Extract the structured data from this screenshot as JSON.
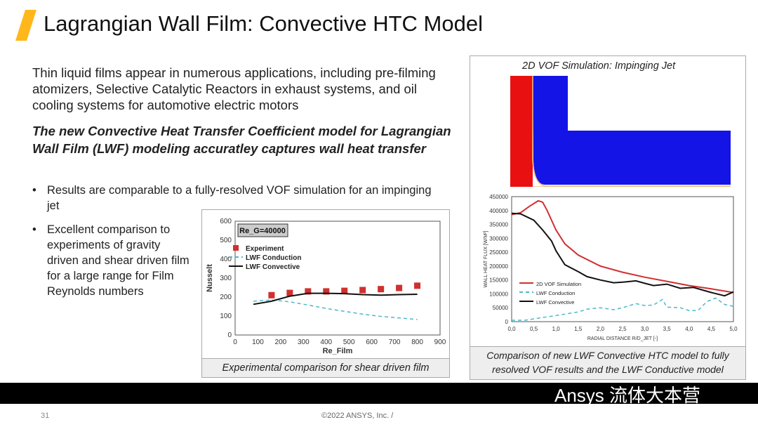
{
  "title": "Lagrangian Wall Film: Convective HTC Model",
  "intro": "Thin liquid films appear in numerous applications, including pre-filming atomizers, Selective Catalytic Reactors in exhaust systems, and oil cooling systems for automotive electric motors",
  "lead": "The new Convective Heat Transfer Coefficient model for Lagrangian Wall Film (LWF) modeling accuratley captures wall heat transfer",
  "bullets": [
    "Results are comparable to a fully-resolved VOF simulation for an impinging jet",
    "Excellent comparison to experiments of gravity driven and shear driven film for a large range for Film Reynolds numbers"
  ],
  "bullet_symbol": "•",
  "left_caption": "Experimental comparison for shear driven film",
  "right_caption": "Comparison of new LWF Convective HTC model to fully resolved VOF results and the LWF Conductive model",
  "vof_title": "2D VOF Simulation: Impinging Jet",
  "footer": {
    "page": "31",
    "copyright": "©2022 ANSYS, Inc. /",
    "watermark": "Ansys 流体大本营"
  },
  "colors": {
    "accent": "#ffb71b",
    "red": "#d0302f",
    "blue": "#1010e0",
    "teal": "#4fb8c8",
    "black": "#111"
  },
  "chart_data": [
    {
      "type": "scatter+line",
      "annotation": "Re_G=40000",
      "xlabel": "Re_Film",
      "ylabel": "Nusselt",
      "xlim": [
        0,
        900
      ],
      "ylim": [
        0,
        600
      ],
      "xticks": [
        0,
        100,
        200,
        300,
        400,
        500,
        600,
        700,
        800,
        900
      ],
      "yticks": [
        0,
        100,
        200,
        300,
        400,
        500,
        600
      ],
      "legend": "top-left",
      "series": [
        {
          "name": "Experiment",
          "style": "markers",
          "color": "#d0302f",
          "x": [
            160,
            240,
            320,
            400,
            480,
            560,
            640,
            720,
            800
          ],
          "y": [
            210,
            222,
            230,
            230,
            233,
            237,
            242,
            248,
            260
          ]
        },
        {
          "name": "LWF Conduction",
          "style": "dashed",
          "color": "#4fb8c8",
          "x": [
            80,
            160,
            240,
            320,
            400,
            480,
            560,
            640,
            720,
            800
          ],
          "y": [
            178,
            185,
            175,
            158,
            140,
            125,
            110,
            98,
            90,
            82
          ]
        },
        {
          "name": "LWF Convective",
          "style": "solid",
          "color": "#111",
          "x": [
            80,
            160,
            240,
            320,
            400,
            480,
            560,
            640,
            720,
            800
          ],
          "y": [
            162,
            178,
            205,
            220,
            220,
            218,
            213,
            210,
            213,
            215
          ]
        }
      ]
    },
    {
      "type": "line",
      "xlabel": "RADIAL DISTANCE R/D_JET [-]",
      "ylabel": "WALL HEAT FLUX [W/M²]",
      "xlim": [
        0,
        5
      ],
      "ylim": [
        0,
        450000
      ],
      "xticks": [
        "0,0",
        "0,5",
        "1,0",
        "1,5",
        "2,0",
        "2,5",
        "3,0",
        "3,5",
        "4,0",
        "4,5",
        "5,0"
      ],
      "yticks": [
        0,
        50000,
        100000,
        150000,
        200000,
        250000,
        300000,
        350000,
        400000,
        450000
      ],
      "legend": "bottom-left",
      "series": [
        {
          "name": "2D VOF Simulation",
          "style": "solid",
          "color": "#d0302f",
          "x": [
            0,
            0.2,
            0.4,
            0.6,
            0.7,
            0.8,
            1.0,
            1.2,
            1.5,
            2.0,
            2.5,
            3.0,
            3.5,
            4.0,
            4.5,
            5.0
          ],
          "y": [
            385000,
            392000,
            415000,
            435000,
            430000,
            400000,
            330000,
            280000,
            240000,
            200000,
            178000,
            160000,
            145000,
            130000,
            118000,
            105000
          ]
        },
        {
          "name": "LWF Conduction",
          "style": "dashed",
          "color": "#4fb8c8",
          "x": [
            0,
            0.3,
            0.5,
            1.0,
            1.5,
            1.7,
            2.0,
            2.3,
            2.5,
            2.8,
            3.0,
            3.2,
            3.4,
            3.5,
            3.8,
            4.0,
            4.2,
            4.4,
            4.6,
            4.8,
            5.0
          ],
          "y": [
            5000,
            5000,
            10000,
            22000,
            35000,
            45000,
            50000,
            43000,
            50000,
            65000,
            58000,
            60000,
            80000,
            52000,
            50000,
            40000,
            40000,
            72000,
            85000,
            62000,
            55000
          ]
        },
        {
          "name": "LWF Convective",
          "style": "solid",
          "color": "#111",
          "x": [
            0,
            0.2,
            0.5,
            0.7,
            0.9,
            1.0,
            1.2,
            1.5,
            1.7,
            2.0,
            2.3,
            2.5,
            2.8,
            3.0,
            3.2,
            3.5,
            3.8,
            4.1,
            4.5,
            4.8,
            5.0
          ],
          "y": [
            390000,
            388000,
            365000,
            330000,
            290000,
            255000,
            205000,
            180000,
            162000,
            150000,
            140000,
            142000,
            147000,
            138000,
            130000,
            135000,
            120000,
            123000,
            105000,
            93000,
            107000
          ]
        }
      ]
    }
  ]
}
